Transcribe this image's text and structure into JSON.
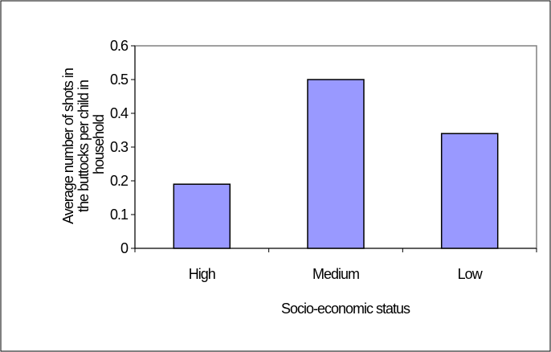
{
  "chart_data": {
    "type": "bar",
    "categories": [
      "High",
      "Medium",
      "Low"
    ],
    "values": [
      0.19,
      0.5,
      0.34
    ],
    "xlabel": "Socio-economic status",
    "ylabel_lines": [
      "Average number of shots in",
      "the buttocks per child in",
      "household"
    ],
    "ylim": [
      0,
      0.6
    ],
    "yticks": [
      "0",
      "0.1",
      "0.2",
      "0.3",
      "0.4",
      "0.5",
      "0.6"
    ],
    "grid": false,
    "legend": "none",
    "colors": {
      "bar_fill": "#9999ff",
      "bar_stroke": "#000000",
      "plot_border": "#808080",
      "frame_border": "#000000"
    }
  }
}
